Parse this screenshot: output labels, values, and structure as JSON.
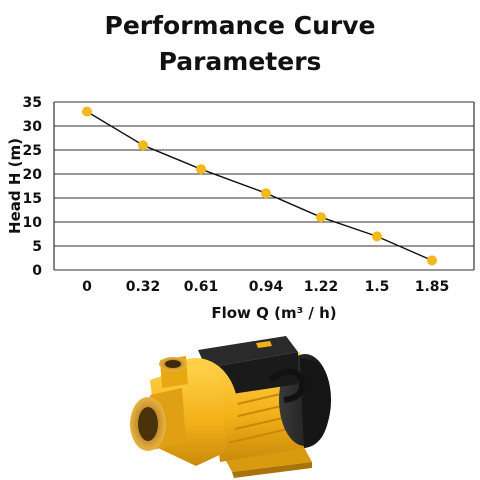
{
  "title_lines": [
    "Performance Curve",
    "Parameters"
  ],
  "colors": {
    "marker": "#f2b81c",
    "line": "#111111",
    "grid": "#333333",
    "pump_body": "#f4b21a",
    "pump_dark": "#1c1c1c"
  },
  "chart_data": {
    "type": "line",
    "title": "Performance Curve Parameters",
    "xlabel": "Flow Q (m³ / h)",
    "ylabel": "Head H (m)",
    "categories": [
      "0",
      "0.32",
      "0.61",
      "0.94",
      "1.22",
      "1.5",
      "1.85"
    ],
    "values": [
      33,
      26,
      21,
      16,
      11,
      7,
      2
    ],
    "ylim": [
      0,
      35
    ],
    "yticks": [
      0,
      5,
      10,
      15,
      20,
      25,
      30,
      35
    ],
    "grid": "horizontal",
    "legend": "none"
  },
  "product_image": "pump-illustration"
}
